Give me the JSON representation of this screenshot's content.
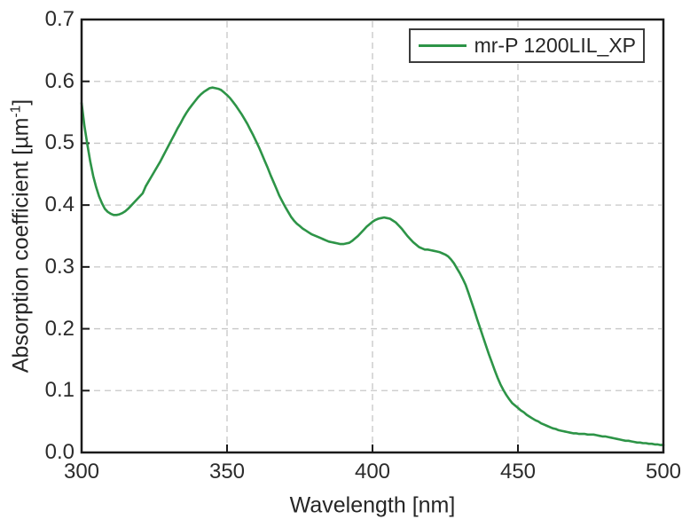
{
  "figure": {
    "background": "#ffffff",
    "frame_color": "#1a1a1a",
    "gridline_color": "#c7c7c7",
    "legend": {
      "label": "mr-P 1200LIL_XP",
      "line_color": "#2d9447",
      "position": "top-right"
    },
    "axes": {
      "x": {
        "label": "Wavelength [nm]",
        "min": 300,
        "max": 500,
        "ticks": [
          300,
          350,
          400,
          450,
          500
        ]
      },
      "y": {
        "label": "Absorption coefficient [µm⁻¹]",
        "label_main": "Absorption coefficient [µm",
        "label_sup": "-1",
        "label_close": "]",
        "min": 0.0,
        "max": 0.7,
        "ticks": [
          "0.0",
          "0.1",
          "0.2",
          "0.3",
          "0.4",
          "0.5",
          "0.6",
          "0.7"
        ]
      }
    }
  },
  "chart_data": {
    "type": "line",
    "title": "",
    "xlabel": "Wavelength [nm]",
    "ylabel": "Absorption coefficient [µm⁻¹]",
    "xlim": [
      300,
      500
    ],
    "ylim": [
      0.0,
      0.7
    ],
    "grid": "dashed gridlines at every major tick, both axes",
    "legend_position": "top-right",
    "series": [
      {
        "name": "mr-P 1200LIL_XP",
        "color": "#2d9447",
        "x": [
          300,
          301,
          302,
          303,
          304,
          305,
          306,
          307,
          308,
          309,
          310,
          311,
          312,
          313,
          314,
          315,
          316,
          317,
          318,
          319,
          320,
          321,
          322,
          323,
          324,
          325,
          326,
          327,
          328,
          329,
          330,
          331,
          332,
          333,
          334,
          335,
          336,
          337,
          338,
          339,
          340,
          341,
          342,
          343,
          344,
          345,
          346,
          347,
          348,
          349,
          350,
          351,
          352,
          353,
          354,
          355,
          356,
          357,
          358,
          359,
          360,
          361,
          362,
          363,
          364,
          365,
          366,
          367,
          368,
          369,
          370,
          371,
          372,
          373,
          374,
          375,
          376,
          377,
          378,
          379,
          380,
          381,
          382,
          383,
          384,
          385,
          386,
          387,
          388,
          389,
          390,
          391,
          392,
          393,
          394,
          395,
          396,
          397,
          398,
          399,
          400,
          401,
          402,
          403,
          404,
          405,
          406,
          407,
          408,
          409,
          410,
          411,
          412,
          413,
          414,
          415,
          416,
          417,
          418,
          419,
          420,
          421,
          422,
          423,
          424,
          425,
          426,
          427,
          428,
          429,
          430,
          431,
          432,
          433,
          434,
          435,
          436,
          437,
          438,
          439,
          440,
          441,
          442,
          443,
          444,
          445,
          446,
          447,
          448,
          449,
          450,
          451,
          452,
          453,
          454,
          455,
          456,
          457,
          458,
          459,
          460,
          461,
          462,
          463,
          464,
          465,
          466,
          467,
          468,
          469,
          470,
          471,
          472,
          473,
          474,
          475,
          476,
          477,
          478,
          479,
          480,
          481,
          482,
          483,
          484,
          485,
          486,
          487,
          488,
          489,
          490,
          491,
          492,
          493,
          494,
          495,
          496,
          497,
          498,
          499,
          500
        ],
        "y": [
          0.565,
          0.527,
          0.497,
          0.47,
          0.447,
          0.429,
          0.414,
          0.403,
          0.394,
          0.389,
          0.386,
          0.384,
          0.384,
          0.385,
          0.387,
          0.39,
          0.394,
          0.399,
          0.404,
          0.409,
          0.414,
          0.419,
          0.43,
          0.438,
          0.446,
          0.454,
          0.462,
          0.47,
          0.479,
          0.488,
          0.497,
          0.506,
          0.515,
          0.524,
          0.532,
          0.541,
          0.549,
          0.556,
          0.562,
          0.568,
          0.574,
          0.579,
          0.583,
          0.586,
          0.589,
          0.59,
          0.589,
          0.588,
          0.586,
          0.582,
          0.578,
          0.573,
          0.567,
          0.561,
          0.554,
          0.547,
          0.539,
          0.531,
          0.522,
          0.513,
          0.503,
          0.493,
          0.482,
          0.471,
          0.46,
          0.448,
          0.437,
          0.426,
          0.415,
          0.406,
          0.397,
          0.389,
          0.381,
          0.375,
          0.37,
          0.366,
          0.362,
          0.359,
          0.356,
          0.353,
          0.351,
          0.349,
          0.347,
          0.345,
          0.343,
          0.341,
          0.34,
          0.339,
          0.338,
          0.337,
          0.337,
          0.338,
          0.339,
          0.342,
          0.346,
          0.35,
          0.355,
          0.36,
          0.365,
          0.369,
          0.373,
          0.376,
          0.378,
          0.379,
          0.38,
          0.379,
          0.378,
          0.375,
          0.372,
          0.367,
          0.362,
          0.356,
          0.35,
          0.345,
          0.34,
          0.336,
          0.332,
          0.33,
          0.328,
          0.328,
          0.327,
          0.326,
          0.325,
          0.324,
          0.322,
          0.32,
          0.317,
          0.312,
          0.306,
          0.298,
          0.29,
          0.281,
          0.271,
          0.258,
          0.244,
          0.23,
          0.215,
          0.201,
          0.187,
          0.173,
          0.159,
          0.146,
          0.133,
          0.121,
          0.11,
          0.101,
          0.093,
          0.086,
          0.08,
          0.076,
          0.072,
          0.068,
          0.065,
          0.061,
          0.058,
          0.055,
          0.052,
          0.05,
          0.047,
          0.045,
          0.043,
          0.041,
          0.039,
          0.038,
          0.036,
          0.035,
          0.034,
          0.033,
          0.032,
          0.031,
          0.031,
          0.03,
          0.03,
          0.03,
          0.029,
          0.029,
          0.029,
          0.028,
          0.027,
          0.026,
          0.026,
          0.025,
          0.024,
          0.023,
          0.022,
          0.021,
          0.02,
          0.019,
          0.019,
          0.018,
          0.017,
          0.016,
          0.016,
          0.015,
          0.015,
          0.014,
          0.014,
          0.013,
          0.013,
          0.012,
          0.012
        ]
      }
    ]
  }
}
